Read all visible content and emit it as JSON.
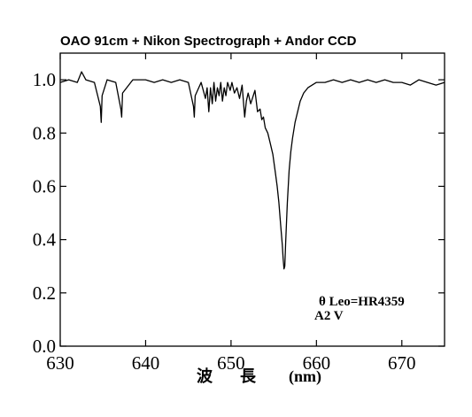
{
  "chart_data": {
    "type": "line",
    "title": "OAO 91cm + Nikon Spectrograph + Andor CCD",
    "xlabel_chars": [
      "波",
      "長"
    ],
    "xlabel_unit": "(nm)",
    "ylabel": "",
    "xlim": [
      630,
      675
    ],
    "ylim": [
      0.0,
      1.1
    ],
    "x_ticks": [
      630,
      640,
      650,
      660,
      670
    ],
    "x_tick_labels": [
      "630",
      "640",
      "650",
      "660",
      "670"
    ],
    "y_ticks": [
      0.0,
      0.2,
      0.4,
      0.6,
      0.8,
      1.0
    ],
    "y_tick_labels": [
      "0.0",
      "0.2",
      "0.4",
      "0.6",
      "0.8",
      "1.0"
    ],
    "grid": false,
    "annotation": {
      "star": "θ Leo=HR4359",
      "spectral_type": "A2 V"
    },
    "series": [
      {
        "x": [
          630.0,
          631.0,
          632.0,
          632.5,
          633.0,
          634.0,
          634.7,
          634.8,
          634.9,
          635.5,
          636.5,
          637.1,
          637.2,
          637.3,
          638.5,
          640.0,
          641.0,
          642.0,
          643.0,
          644.0,
          645.0,
          645.6,
          645.7,
          645.8,
          646.5,
          647.0,
          647.2,
          647.4,
          647.6,
          647.8,
          648.0,
          648.2,
          648.4,
          648.6,
          648.8,
          649.0,
          649.2,
          649.4,
          649.6,
          649.9,
          650.1,
          650.4,
          650.7,
          651.0,
          651.3,
          651.6,
          651.8,
          652.0,
          652.3,
          652.5,
          652.8,
          653.1,
          653.4,
          653.6,
          653.8,
          654.0,
          654.3,
          654.6,
          654.9,
          655.2,
          655.4,
          655.6,
          655.8,
          656.0,
          656.1,
          656.2,
          656.3,
          656.4,
          656.5,
          656.6,
          656.7,
          656.8,
          657.0,
          657.2,
          657.5,
          657.8,
          658.1,
          658.5,
          659.0,
          659.5,
          660.0,
          661.0,
          662.0,
          663.0,
          664.0,
          665.0,
          666.0,
          667.0,
          668.0,
          669.0,
          670.0,
          671.0,
          672.0,
          673.0,
          674.0,
          675.0
        ],
        "y": [
          0.99,
          1.0,
          0.99,
          1.03,
          1.0,
          0.99,
          0.9,
          0.84,
          0.94,
          1.0,
          0.99,
          0.89,
          0.86,
          0.95,
          1.0,
          1.0,
          0.99,
          1.0,
          0.99,
          1.0,
          0.99,
          0.9,
          0.86,
          0.94,
          0.99,
          0.93,
          0.97,
          0.88,
          0.97,
          0.91,
          0.99,
          0.92,
          0.97,
          0.94,
          0.99,
          0.92,
          0.97,
          0.94,
          0.99,
          0.96,
          0.99,
          0.95,
          0.97,
          0.93,
          0.98,
          0.86,
          0.92,
          0.95,
          0.91,
          0.93,
          0.96,
          0.88,
          0.89,
          0.85,
          0.86,
          0.82,
          0.8,
          0.76,
          0.72,
          0.65,
          0.6,
          0.54,
          0.46,
          0.38,
          0.33,
          0.29,
          0.3,
          0.39,
          0.47,
          0.54,
          0.6,
          0.66,
          0.73,
          0.78,
          0.84,
          0.88,
          0.92,
          0.95,
          0.97,
          0.98,
          0.99,
          0.99,
          1.0,
          0.99,
          1.0,
          0.99,
          1.0,
          0.99,
          1.0,
          0.99,
          0.99,
          0.98,
          1.0,
          0.99,
          0.98,
          0.99
        ]
      }
    ]
  }
}
